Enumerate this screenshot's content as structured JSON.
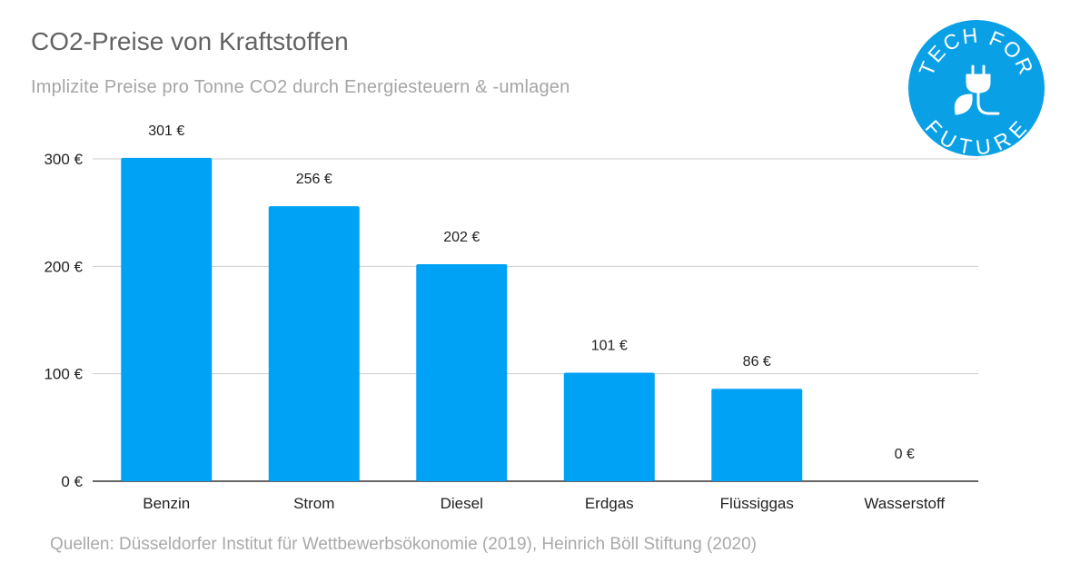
{
  "logo": {
    "top_text": "TECH FOR",
    "bottom_text": "FUTURE",
    "color": "#0aa0e6",
    "icon": "plug-leaf-icon"
  },
  "source": "Quellen: Düsseldorfer Institut für Wettbewerbsökonomie (2019), Heinrich Böll Stiftung (2020)",
  "chart_data": {
    "type": "bar",
    "title": "CO2-Preise von Kraftstoffen",
    "subtitle": "Implizite Preise pro Tonne CO2 durch Energiesteuern & -umlagen",
    "categories": [
      "Benzin",
      "Strom",
      "Diesel",
      "Erdgas",
      "Flüssiggas",
      "Wasserstoff"
    ],
    "values": [
      301,
      256,
      202,
      101,
      86,
      0
    ],
    "data_labels": [
      "301 €",
      "256 €",
      "202 €",
      "101 €",
      "86 €",
      "0 €"
    ],
    "ylim": [
      0,
      300
    ],
    "yticks": [
      0,
      100,
      200,
      300
    ],
    "ytick_labels": [
      "0 €",
      "100 €",
      "200 €",
      "300 €"
    ],
    "xlabel": "",
    "ylabel": "",
    "bar_color": "#00a2f5",
    "grid": true,
    "legend": "none"
  }
}
